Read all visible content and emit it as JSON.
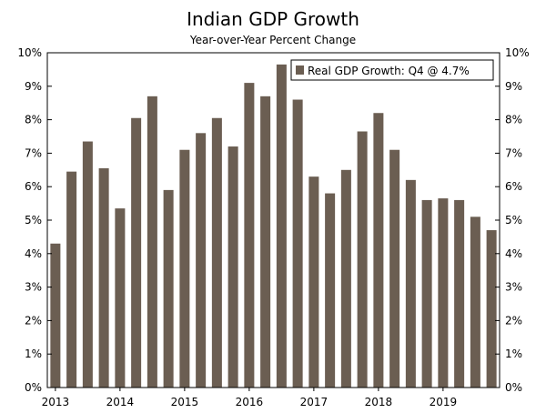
{
  "chart_data": {
    "type": "bar",
    "title": "Indian GDP Growth",
    "subtitle": "Year-over-Year Percent Change",
    "series": [
      {
        "name": "Real GDP Growth: Q4 @ 4.7%",
        "color": "#6b5e52",
        "values": [
          4.3,
          6.45,
          7.35,
          6.55,
          5.35,
          8.05,
          8.7,
          5.9,
          7.1,
          7.6,
          8.05,
          7.2,
          9.1,
          8.7,
          9.65,
          8.6,
          6.3,
          5.8,
          6.5,
          7.65,
          8.2,
          7.1,
          6.2,
          5.6,
          5.65,
          5.6,
          5.1,
          4.7
        ]
      }
    ],
    "x_year_labels": [
      "2013",
      "2014",
      "2015",
      "2016",
      "2017",
      "2018",
      "2019"
    ],
    "y_tick_labels": [
      "0%",
      "1%",
      "2%",
      "3%",
      "4%",
      "5%",
      "6%",
      "7%",
      "8%",
      "9%",
      "10%"
    ],
    "ylim": [
      0,
      10
    ],
    "legend_position": "top-right",
    "grid": false
  }
}
